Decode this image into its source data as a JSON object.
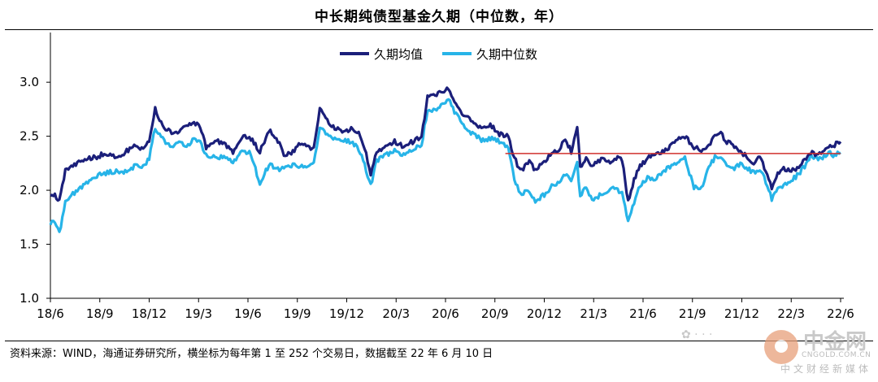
{
  "chart_data": {
    "type": "line",
    "title": "中长期纯债型基金久期（中位数，年）",
    "ylim": [
      1.0,
      3.4
    ],
    "yticks": [
      1.0,
      1.5,
      2.0,
      2.5,
      3.0
    ],
    "ytick_labels": [
      "1.0",
      "1.5",
      "2.0",
      "2.5",
      "3.0"
    ],
    "xtick_labels": [
      "18/6",
      "18/9",
      "18/12",
      "19/3",
      "19/6",
      "19/9",
      "19/12",
      "20/3",
      "20/6",
      "20/9",
      "20/12",
      "21/3",
      "21/6",
      "21/9",
      "21/12",
      "22/3",
      "22/6"
    ],
    "legend_position": "top-center",
    "grid": false,
    "series": [
      {
        "name": "久期均值",
        "color": "#1b1f7a",
        "anchors": [
          [
            0,
            1.97
          ],
          [
            3,
            1.95
          ],
          [
            6,
            1.9
          ],
          [
            10,
            2.18
          ],
          [
            14,
            2.22
          ],
          [
            20,
            2.26
          ],
          [
            24,
            2.3
          ],
          [
            30,
            2.3
          ],
          [
            36,
            2.34
          ],
          [
            40,
            2.32
          ],
          [
            46,
            2.3
          ],
          [
            50,
            2.35
          ],
          [
            56,
            2.42
          ],
          [
            60,
            2.38
          ],
          [
            66,
            2.46
          ],
          [
            70,
            2.76
          ],
          [
            74,
            2.62
          ],
          [
            78,
            2.55
          ],
          [
            84,
            2.53
          ],
          [
            90,
            2.58
          ],
          [
            96,
            2.63
          ],
          [
            100,
            2.6
          ],
          [
            104,
            2.4
          ],
          [
            110,
            2.46
          ],
          [
            116,
            2.44
          ],
          [
            122,
            2.36
          ],
          [
            128,
            2.5
          ],
          [
            134,
            2.48
          ],
          [
            140,
            2.36
          ],
          [
            146,
            2.56
          ],
          [
            152,
            2.46
          ],
          [
            156,
            2.32
          ],
          [
            162,
            2.36
          ],
          [
            168,
            2.44
          ],
          [
            172,
            2.4
          ],
          [
            176,
            2.38
          ],
          [
            180,
            2.76
          ],
          [
            184,
            2.66
          ],
          [
            190,
            2.58
          ],
          [
            196,
            2.55
          ],
          [
            202,
            2.57
          ],
          [
            206,
            2.52
          ],
          [
            210,
            2.4
          ],
          [
            214,
            2.15
          ],
          [
            218,
            2.36
          ],
          [
            224,
            2.4
          ],
          [
            230,
            2.45
          ],
          [
            236,
            2.4
          ],
          [
            242,
            2.45
          ],
          [
            248,
            2.5
          ],
          [
            252,
            2.86
          ],
          [
            256,
            2.88
          ],
          [
            262,
            2.92
          ],
          [
            266,
            2.94
          ],
          [
            270,
            2.82
          ],
          [
            276,
            2.7
          ],
          [
            282,
            2.63
          ],
          [
            288,
            2.58
          ],
          [
            294,
            2.6
          ],
          [
            300,
            2.52
          ],
          [
            306,
            2.5
          ],
          [
            310,
            2.3
          ],
          [
            314,
            2.18
          ],
          [
            320,
            2.26
          ],
          [
            324,
            2.18
          ],
          [
            330,
            2.26
          ],
          [
            336,
            2.35
          ],
          [
            340,
            2.38
          ],
          [
            344,
            2.48
          ],
          [
            348,
            2.36
          ],
          [
            352,
            2.6
          ],
          [
            354,
            2.22
          ],
          [
            358,
            2.3
          ],
          [
            362,
            2.22
          ],
          [
            368,
            2.28
          ],
          [
            374,
            2.26
          ],
          [
            378,
            2.3
          ],
          [
            382,
            2.28
          ],
          [
            386,
            1.9
          ],
          [
            390,
            2.1
          ],
          [
            394,
            2.22
          ],
          [
            400,
            2.3
          ],
          [
            404,
            2.32
          ],
          [
            410,
            2.36
          ],
          [
            414,
            2.4
          ],
          [
            418,
            2.48
          ],
          [
            424,
            2.5
          ],
          [
            430,
            2.4
          ],
          [
            436,
            2.36
          ],
          [
            440,
            2.4
          ],
          [
            444,
            2.5
          ],
          [
            448,
            2.52
          ],
          [
            452,
            2.45
          ],
          [
            456,
            2.42
          ],
          [
            460,
            2.38
          ],
          [
            466,
            2.3
          ],
          [
            470,
            2.26
          ],
          [
            474,
            2.3
          ],
          [
            478,
            2.18
          ],
          [
            482,
            2.03
          ],
          [
            486,
            2.15
          ],
          [
            490,
            2.2
          ],
          [
            496,
            2.18
          ],
          [
            500,
            2.22
          ],
          [
            504,
            2.28
          ],
          [
            508,
            2.35
          ],
          [
            512,
            2.33
          ],
          [
            516,
            2.37
          ],
          [
            520,
            2.4
          ],
          [
            524,
            2.42
          ],
          [
            528,
            2.45
          ]
        ]
      },
      {
        "name": "久期中位数",
        "color": "#27b4e8",
        "anchors": [
          [
            0,
            1.7
          ],
          [
            3,
            1.72
          ],
          [
            6,
            1.6
          ],
          [
            10,
            1.9
          ],
          [
            16,
            1.98
          ],
          [
            22,
            2.05
          ],
          [
            28,
            2.12
          ],
          [
            34,
            2.15
          ],
          [
            40,
            2.17
          ],
          [
            46,
            2.18
          ],
          [
            50,
            2.17
          ],
          [
            56,
            2.22
          ],
          [
            62,
            2.22
          ],
          [
            66,
            2.3
          ],
          [
            70,
            2.57
          ],
          [
            76,
            2.46
          ],
          [
            80,
            2.4
          ],
          [
            86,
            2.44
          ],
          [
            92,
            2.42
          ],
          [
            96,
            2.48
          ],
          [
            100,
            2.46
          ],
          [
            104,
            2.32
          ],
          [
            110,
            2.3
          ],
          [
            116,
            2.32
          ],
          [
            122,
            2.26
          ],
          [
            128,
            2.36
          ],
          [
            134,
            2.34
          ],
          [
            140,
            2.05
          ],
          [
            146,
            2.24
          ],
          [
            152,
            2.2
          ],
          [
            156,
            2.2
          ],
          [
            162,
            2.24
          ],
          [
            168,
            2.22
          ],
          [
            172,
            2.22
          ],
          [
            176,
            2.26
          ],
          [
            180,
            2.58
          ],
          [
            184,
            2.52
          ],
          [
            190,
            2.48
          ],
          [
            196,
            2.46
          ],
          [
            202,
            2.44
          ],
          [
            206,
            2.38
          ],
          [
            210,
            2.24
          ],
          [
            214,
            2.04
          ],
          [
            218,
            2.28
          ],
          [
            224,
            2.32
          ],
          [
            230,
            2.36
          ],
          [
            236,
            2.32
          ],
          [
            242,
            2.38
          ],
          [
            248,
            2.42
          ],
          [
            252,
            2.75
          ],
          [
            256,
            2.74
          ],
          [
            262,
            2.8
          ],
          [
            266,
            2.84
          ],
          [
            270,
            2.72
          ],
          [
            276,
            2.6
          ],
          [
            282,
            2.52
          ],
          [
            288,
            2.47
          ],
          [
            294,
            2.48
          ],
          [
            300,
            2.45
          ],
          [
            306,
            2.38
          ],
          [
            310,
            2.1
          ],
          [
            314,
            1.96
          ],
          [
            320,
            2.0
          ],
          [
            324,
            1.9
          ],
          [
            330,
            1.96
          ],
          [
            336,
            2.05
          ],
          [
            340,
            2.06
          ],
          [
            344,
            2.14
          ],
          [
            348,
            2.08
          ],
          [
            352,
            2.24
          ],
          [
            354,
            1.96
          ],
          [
            358,
            2.02
          ],
          [
            362,
            1.92
          ],
          [
            368,
            1.96
          ],
          [
            374,
            2.02
          ],
          [
            378,
            2.0
          ],
          [
            382,
            1.98
          ],
          [
            386,
            1.72
          ],
          [
            390,
            1.88
          ],
          [
            394,
            2.05
          ],
          [
            400,
            2.12
          ],
          [
            404,
            2.1
          ],
          [
            410,
            2.18
          ],
          [
            414,
            2.22
          ],
          [
            418,
            2.26
          ],
          [
            424,
            2.3
          ],
          [
            430,
            2.02
          ],
          [
            436,
            2.04
          ],
          [
            440,
            2.22
          ],
          [
            444,
            2.3
          ],
          [
            448,
            2.3
          ],
          [
            452,
            2.24
          ],
          [
            456,
            2.2
          ],
          [
            460,
            2.24
          ],
          [
            466,
            2.2
          ],
          [
            470,
            2.16
          ],
          [
            474,
            2.2
          ],
          [
            478,
            2.08
          ],
          [
            482,
            1.92
          ],
          [
            486,
            2.0
          ],
          [
            490,
            2.05
          ],
          [
            496,
            2.1
          ],
          [
            500,
            2.15
          ],
          [
            504,
            2.22
          ],
          [
            508,
            2.32
          ],
          [
            512,
            2.3
          ],
          [
            516,
            2.3
          ],
          [
            520,
            2.35
          ],
          [
            524,
            2.32
          ],
          [
            528,
            2.35
          ]
        ]
      }
    ],
    "reference_line": {
      "color": "#d0312d",
      "x_start": 304,
      "x_end": 528,
      "y": 2.34
    }
  },
  "source_text": "资料来源：WIND，海通证券研究所，横坐标为每年第 1 至 252 个交易日，数据截至 22 年 6 月 10 日",
  "watermark": {
    "brand": "中金网",
    "domain": "CNGOLD.COM.CN",
    "tagline": "中文财经新媒体"
  }
}
